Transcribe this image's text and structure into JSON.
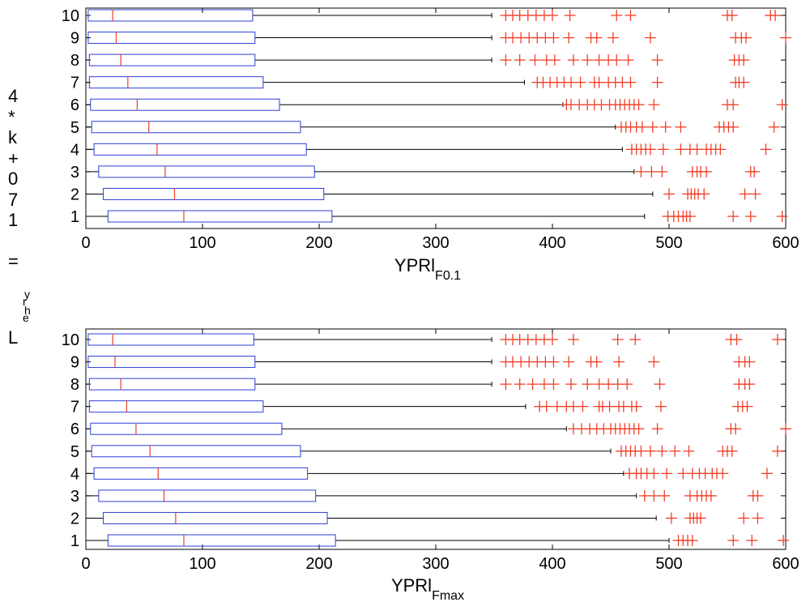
{
  "figure": {
    "shared_ylabel_chars": [
      "4",
      "*",
      "k",
      "+",
      "0",
      "7",
      "1",
      "",
      "="
    ],
    "shared_ylabel_tail": {
      "sub_stack": [
        "y",
        "r",
        "h",
        "e"
      ],
      "L": "L"
    }
  },
  "colors": {
    "box": "#2b3fd6",
    "median": "#e8402a",
    "outlier": "#f0402a",
    "whisker": "#000000"
  },
  "chart_data": [
    {
      "type": "box",
      "orientation": "horizontal",
      "xlabel": "YPRl",
      "xlabel_sub": "F0.1",
      "xlim": [
        0,
        600
      ],
      "xticks": [
        0,
        100,
        200,
        300,
        400,
        500,
        600
      ],
      "categories": [
        "1",
        "2",
        "3",
        "4",
        "5",
        "6",
        "7",
        "8",
        "9",
        "10"
      ],
      "boxes": [
        {
          "label": "1",
          "whislo": 0,
          "q1": 19,
          "med": 84,
          "q3": 211,
          "whishi": 479,
          "fliers": [
            499,
            504,
            508,
            512,
            515,
            518,
            555,
            570,
            597
          ]
        },
        {
          "label": "2",
          "whislo": 0,
          "q1": 15,
          "med": 76,
          "q3": 204,
          "whishi": 486,
          "fliers": [
            500,
            516,
            519,
            522,
            525,
            530,
            565,
            574
          ]
        },
        {
          "label": "3",
          "whislo": 0,
          "q1": 11,
          "med": 68,
          "q3": 196,
          "whishi": 470,
          "fliers": [
            476,
            485,
            494,
            520,
            524,
            527,
            532,
            570,
            573
          ]
        },
        {
          "label": "4",
          "whislo": 0,
          "q1": 7,
          "med": 61,
          "q3": 189,
          "whishi": 460,
          "fliers": [
            468,
            472,
            476,
            480,
            484,
            495,
            510,
            518,
            524,
            532,
            536,
            540,
            544,
            583
          ]
        },
        {
          "label": "5",
          "whislo": 0,
          "q1": 5,
          "med": 54,
          "q3": 184,
          "whishi": 454,
          "fliers": [
            459,
            463,
            467,
            472,
            477,
            486,
            497,
            510,
            543,
            547,
            551,
            555,
            590
          ]
        },
        {
          "label": "6",
          "whislo": 0,
          "q1": 4,
          "med": 44,
          "q3": 166,
          "whishi": 409,
          "fliers": [
            412,
            416,
            423,
            430,
            436,
            442,
            449,
            454,
            458,
            462,
            466,
            470,
            474,
            487,
            550,
            555,
            597
          ]
        },
        {
          "label": "7",
          "whislo": 0,
          "q1": 3,
          "med": 36,
          "q3": 152,
          "whishi": 376,
          "fliers": [
            387,
            392,
            398,
            404,
            410,
            416,
            424,
            436,
            440,
            448,
            454,
            460,
            467,
            490,
            557,
            560,
            564
          ]
        },
        {
          "label": "8",
          "whislo": 0,
          "q1": 3,
          "med": 30,
          "q3": 145,
          "whishi": 348,
          "fliers": [
            360,
            372,
            385,
            395,
            402,
            418,
            430,
            440,
            448,
            455,
            465,
            490,
            556,
            560,
            564
          ]
        },
        {
          "label": "9",
          "whislo": 0,
          "q1": 2,
          "med": 26,
          "q3": 145,
          "whishi": 348,
          "fliers": [
            360,
            366,
            373,
            380,
            387,
            394,
            401,
            414,
            433,
            438,
            452,
            484,
            557,
            562,
            566,
            600
          ]
        },
        {
          "label": "10",
          "whislo": 0,
          "q1": 2,
          "med": 23,
          "q3": 143,
          "whishi": 348,
          "fliers": [
            360,
            366,
            372,
            379,
            386,
            393,
            400,
            415,
            455,
            467,
            550,
            554,
            587,
            591
          ]
        }
      ]
    },
    {
      "type": "box",
      "orientation": "horizontal",
      "xlabel": "YPRl",
      "xlabel_sub": "Fmax",
      "xlim": [
        0,
        600
      ],
      "xticks": [
        0,
        100,
        200,
        300,
        400,
        500,
        600
      ],
      "categories": [
        "1",
        "2",
        "3",
        "4",
        "5",
        "6",
        "7",
        "8",
        "9",
        "10"
      ],
      "boxes": [
        {
          "label": "1",
          "whislo": 0,
          "q1": 19,
          "med": 84,
          "q3": 214,
          "whishi": 500,
          "fliers": [
            508,
            512,
            516,
            520,
            555,
            571,
            598
          ]
        },
        {
          "label": "2",
          "whislo": 0,
          "q1": 15,
          "med": 77,
          "q3": 207,
          "whishi": 489,
          "fliers": [
            502,
            518,
            521,
            524,
            527,
            564,
            576
          ]
        },
        {
          "label": "3",
          "whislo": 0,
          "q1": 11,
          "med": 67,
          "q3": 197,
          "whishi": 472,
          "fliers": [
            479,
            487,
            496,
            518,
            524,
            528,
            532,
            536,
            572,
            576
          ]
        },
        {
          "label": "4",
          "whislo": 0,
          "q1": 7,
          "med": 62,
          "q3": 190,
          "whishi": 461,
          "fliers": [
            466,
            472,
            476,
            481,
            487,
            498,
            512,
            520,
            526,
            531,
            537,
            541,
            546,
            584
          ]
        },
        {
          "label": "5",
          "whislo": 0,
          "q1": 5,
          "med": 55,
          "q3": 184,
          "whishi": 450,
          "fliers": [
            459,
            463,
            467,
            471,
            476,
            484,
            494,
            505,
            517,
            546,
            550,
            554,
            593
          ]
        },
        {
          "label": "6",
          "whislo": 0,
          "q1": 4,
          "med": 43,
          "q3": 168,
          "whishi": 412,
          "fliers": [
            418,
            425,
            432,
            438,
            444,
            450,
            454,
            458,
            462,
            466,
            470,
            474,
            490,
            553,
            557,
            600
          ]
        },
        {
          "label": "7",
          "whislo": 0,
          "q1": 3,
          "med": 35,
          "q3": 152,
          "whishi": 377,
          "fliers": [
            389,
            395,
            404,
            412,
            418,
            426,
            440,
            443,
            449,
            457,
            461,
            468,
            472,
            493,
            559,
            563,
            567
          ]
        },
        {
          "label": "8",
          "whislo": 0,
          "q1": 3,
          "med": 30,
          "q3": 145,
          "whishi": 348,
          "fliers": [
            360,
            372,
            383,
            393,
            401,
            416,
            430,
            440,
            448,
            456,
            464,
            492,
            560,
            565,
            569
          ]
        },
        {
          "label": "9",
          "whislo": 0,
          "q1": 2,
          "med": 25,
          "q3": 145,
          "whishi": 348,
          "fliers": [
            360,
            366,
            373,
            380,
            387,
            394,
            401,
            414,
            433,
            438,
            457,
            487,
            560,
            565,
            569
          ]
        },
        {
          "label": "10",
          "whislo": 0,
          "q1": 2,
          "med": 23,
          "q3": 144,
          "whishi": 348,
          "fliers": [
            360,
            366,
            372,
            379,
            386,
            393,
            400,
            418,
            456,
            471,
            553,
            558,
            593
          ]
        }
      ]
    }
  ]
}
